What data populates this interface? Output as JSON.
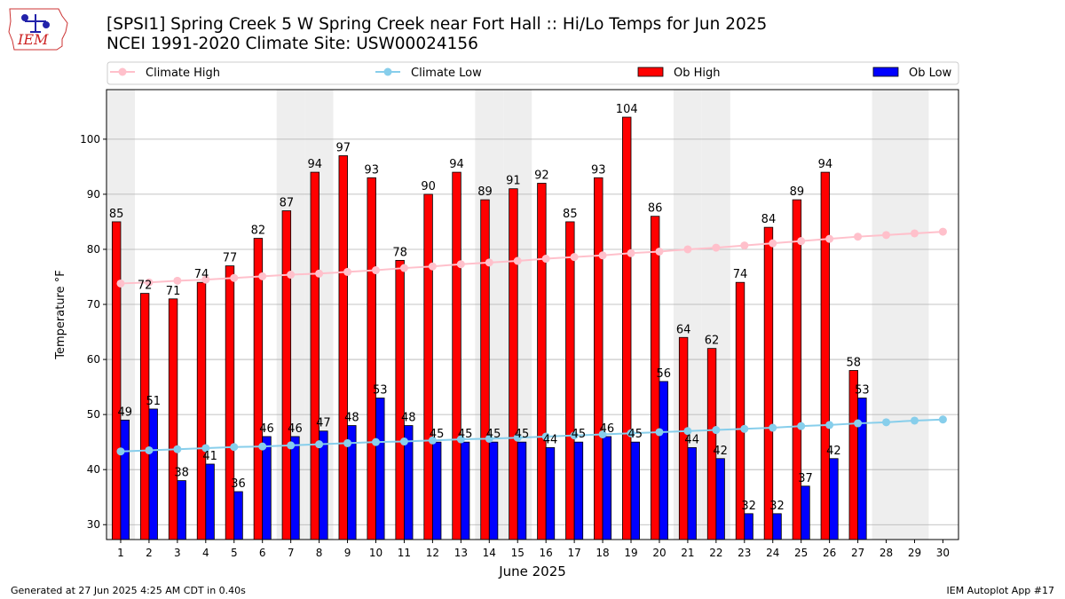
{
  "header": {
    "logo_text": "IEM",
    "title_line1": "[SPSI1] Spring Creek 5 W Spring Creek near Fort Hall :: Hi/Lo Temps for Jun 2025",
    "title_line2": "NCEI 1991-2020 Climate Site: USW00024156"
  },
  "footer": {
    "generated": "Generated at 27 Jun 2025 4:25 AM CDT in 0.40s",
    "app": "IEM Autoplot App #17"
  },
  "colors": {
    "ob_high": "#ff0000",
    "ob_low": "#0000ff",
    "climate_high": "#ffc0cb",
    "climate_low": "#87ceeb",
    "weekend_band": "#eeeeee",
    "grid": "#b0b0b0"
  },
  "chart_data": {
    "type": "bar",
    "xlabel": "June 2025",
    "ylabel": "Temperature °F",
    "ylim": [
      27.3,
      109
    ],
    "yticks": [
      30,
      40,
      50,
      60,
      70,
      80,
      90,
      100
    ],
    "grid": "horizontal",
    "legend_position": "top",
    "categories": [
      "1",
      "2",
      "3",
      "4",
      "5",
      "6",
      "7",
      "8",
      "9",
      "10",
      "11",
      "12",
      "13",
      "14",
      "15",
      "16",
      "17",
      "18",
      "19",
      "20",
      "21",
      "22",
      "23",
      "24",
      "25",
      "26",
      "27",
      "28",
      "29",
      "30"
    ],
    "weekend_days": [
      1,
      7,
      8,
      14,
      15,
      21,
      22,
      28,
      29
    ],
    "series": [
      {
        "name": "Climate High",
        "kind": "line",
        "values": [
          73.8,
          74.0,
          74.3,
          74.5,
          74.8,
          75.1,
          75.4,
          75.6,
          75.9,
          76.2,
          76.6,
          76.9,
          77.3,
          77.6,
          77.9,
          78.3,
          78.6,
          78.9,
          79.3,
          79.6,
          80.0,
          80.3,
          80.7,
          81.1,
          81.5,
          81.9,
          82.3,
          82.6,
          82.9,
          83.2
        ]
      },
      {
        "name": "Climate Low",
        "kind": "line",
        "values": [
          43.3,
          43.5,
          43.7,
          43.9,
          44.1,
          44.2,
          44.4,
          44.6,
          44.8,
          45.0,
          45.1,
          45.3,
          45.5,
          45.6,
          45.8,
          46.0,
          46.2,
          46.4,
          46.6,
          46.8,
          47.0,
          47.2,
          47.4,
          47.6,
          47.9,
          48.1,
          48.4,
          48.6,
          48.9,
          49.1
        ]
      },
      {
        "name": "Ob High",
        "kind": "bar",
        "values": [
          85,
          72,
          71,
          74,
          77,
          82,
          87,
          94,
          97,
          93,
          78,
          90,
          94,
          89,
          91,
          92,
          85,
          93,
          104,
          86,
          64,
          62,
          74,
          84,
          89,
          94,
          58,
          null,
          null,
          null
        ]
      },
      {
        "name": "Ob Low",
        "kind": "bar",
        "values": [
          49,
          51,
          38,
          41,
          36,
          46,
          46,
          47,
          48,
          53,
          48,
          45,
          45,
          45,
          45,
          44,
          45,
          46,
          45,
          56,
          44,
          42,
          32,
          32,
          37,
          42,
          53,
          null,
          null,
          null
        ]
      }
    ]
  }
}
